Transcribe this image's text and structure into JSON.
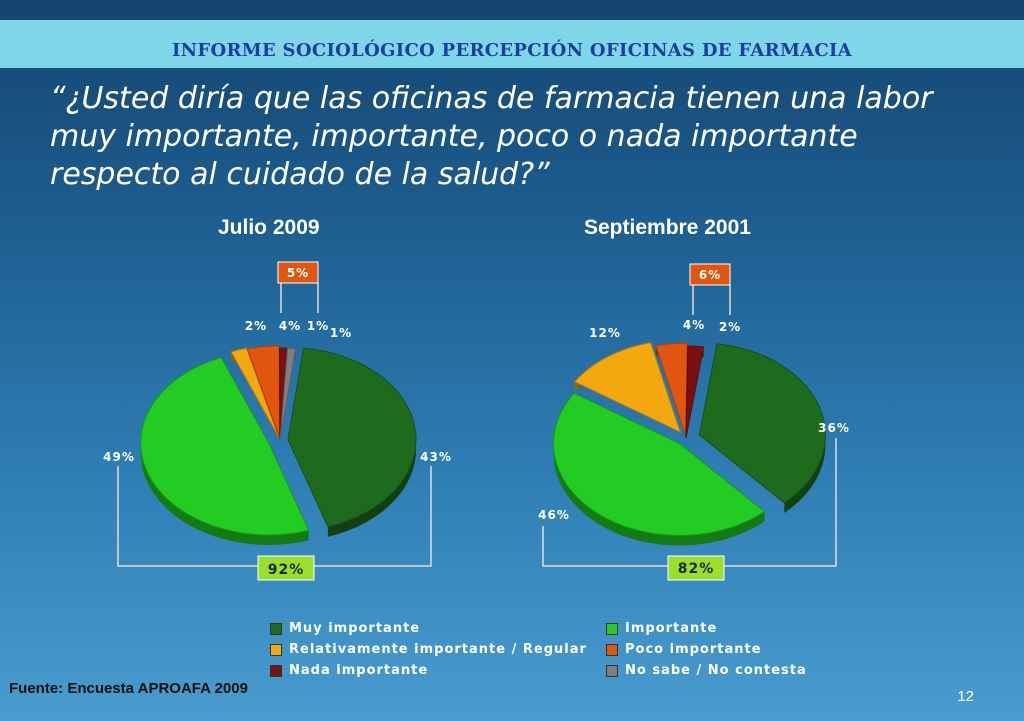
{
  "header": {
    "title": "INFORME SOCIOLÓGICO PERCEPCIÓN OFICINAS DE FARMACIA"
  },
  "question": "“¿Usted diría que las oficinas de farmacia tienen una labor muy importante, importante, poco o nada importante respecto al cuidado de la salud?”",
  "legend": [
    {
      "label": "Muy importante",
      "color": "#1e6b1e"
    },
    {
      "label": "Importante",
      "color": "#22cc22"
    },
    {
      "label": "Relativamente importante / Regular",
      "color": "#f4a80f"
    },
    {
      "label": "Poco importante",
      "color": "#e0560f"
    },
    {
      "label": "Nada importante",
      "color": "#7a1010"
    },
    {
      "label": "No sabe / No contesta",
      "color": "#7f7f7f"
    }
  ],
  "chart_data": [
    {
      "type": "pie",
      "title": "Julio 2009",
      "slices": [
        {
          "category": "Muy importante",
          "value": 43,
          "label": "43%"
        },
        {
          "category": "Importante",
          "value": 49,
          "label": "49%"
        },
        {
          "category": "Relativamente importante / Regular",
          "value": 2,
          "label": "2%"
        },
        {
          "category": "Poco importante",
          "value": 4,
          "label": "4%"
        },
        {
          "category": "Nada importante",
          "value": 1,
          "label": "1%"
        },
        {
          "category": "No sabe / No contesta",
          "value": 1,
          "label": "1%"
        }
      ],
      "annotations": [
        {
          "text": "5%",
          "note": "bracket over Poco importante + Nada importante"
        },
        {
          "text": "92%",
          "note": "bracket over Muy importante + Importante"
        }
      ]
    },
    {
      "type": "pie",
      "title": "Septiembre 2001",
      "slices": [
        {
          "category": "Muy importante",
          "value": 36,
          "label": "36%"
        },
        {
          "category": "Importante",
          "value": 46,
          "label": "46%"
        },
        {
          "category": "Relativamente importante / Regular",
          "value": 12,
          "label": "12%"
        },
        {
          "category": "Poco importante",
          "value": 4,
          "label": "4%"
        },
        {
          "category": "Nada importante",
          "value": 2,
          "label": "2%"
        }
      ],
      "annotations": [
        {
          "text": "6%",
          "note": "bracket over Poco importante + Nada importante"
        },
        {
          "text": "82%",
          "note": "bracket over Muy importante + Importante"
        }
      ]
    }
  ],
  "source": "Fuente: Encuesta APROAFA 2009",
  "page_number": "12"
}
